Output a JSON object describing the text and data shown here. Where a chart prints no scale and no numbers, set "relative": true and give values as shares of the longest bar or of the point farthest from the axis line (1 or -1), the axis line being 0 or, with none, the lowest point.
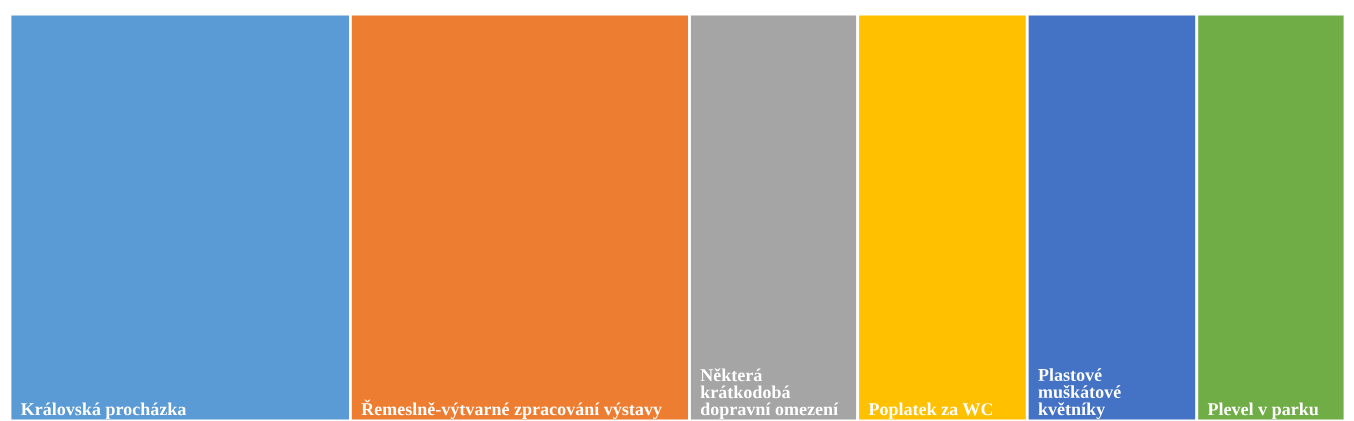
{
  "chart_data": {
    "type": "bar",
    "orientation": "horizontal",
    "stacked": true,
    "relative": true,
    "legend": false,
    "categories": [
      null
    ],
    "series": [
      {
        "name": "Královská procházka",
        "color": "#5b9bd5",
        "values": [
          0.255
        ]
      },
      {
        "name": "Řemeslně-výtvarné zpracování výstavy",
        "color": "#ed7d31",
        "values": [
          0.254
        ]
      },
      {
        "name": "Některá krátkodobá dopravní omezení",
        "color": "#a5a5a5",
        "values": [
          0.126
        ]
      },
      {
        "name": "Poplatek za WC",
        "color": "#ffc000",
        "values": [
          0.127
        ]
      },
      {
        "name": "Plastové muškátové květníky",
        "color": "#4472c4",
        "values": [
          0.127
        ]
      },
      {
        "name": "Plevel v parku",
        "color": "#70ad47",
        "values": [
          0.111
        ]
      }
    ]
  }
}
